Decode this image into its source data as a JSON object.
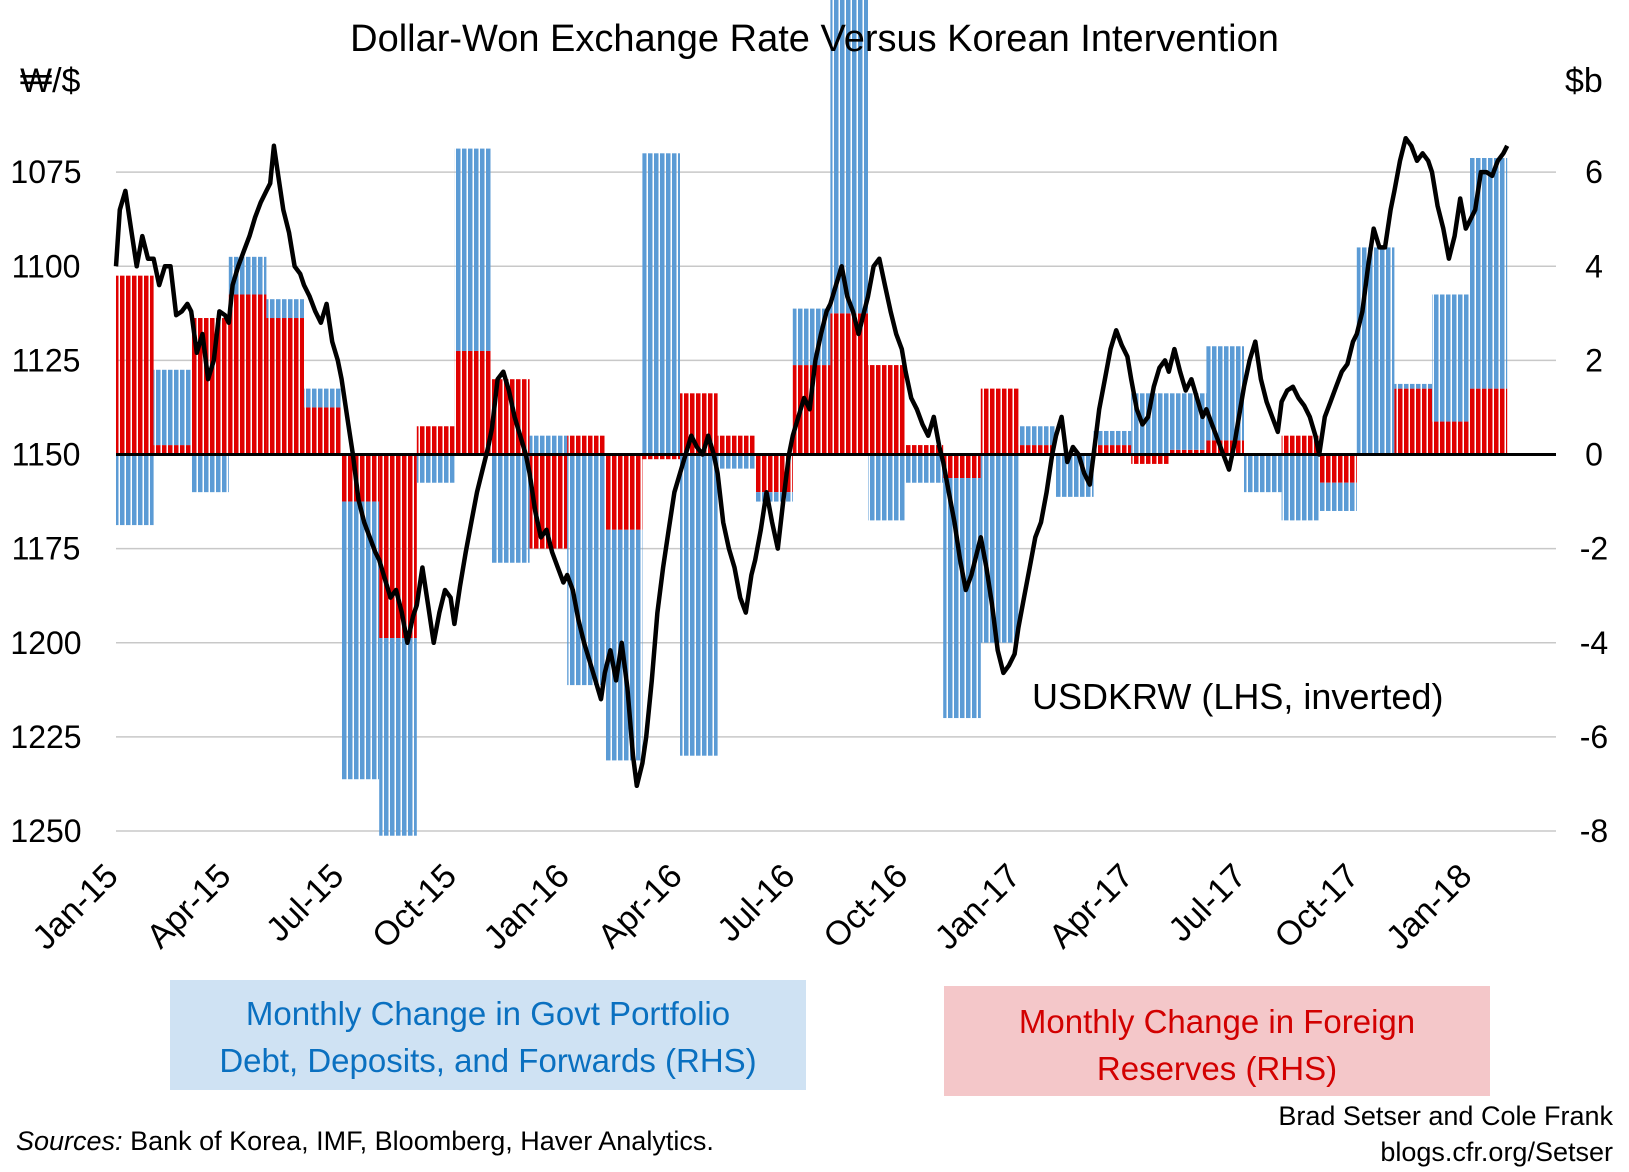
{
  "title": "Dollar-Won Exchange Rate Versus Korean Intervention",
  "left_unit": "₩/$",
  "right_unit": "$b",
  "line_label": "USDKRW (LHS, inverted)",
  "legend": {
    "blue_line1": "Monthly Change in Govt Portfolio",
    "blue_line2": "Debt, Deposits, and Forwards (RHS)",
    "red_line1": "Monthly Change in Foreign",
    "red_line2": "Reserves (RHS)"
  },
  "sources": {
    "label": "Sources:",
    "text": " Bank of Korea, IMF, Bloomberg, Haver Analytics."
  },
  "credit": {
    "line1": "Brad Setser and Cole Frank",
    "line2": "blogs.cfr.org/Setser"
  },
  "colors": {
    "reserves": "#e00000",
    "portfolio": "#5b9bd5",
    "line": "#000000",
    "grid": "#c8c8c8"
  },
  "chart_data": {
    "type": "bar",
    "months": [
      "Jan-15",
      "Feb-15",
      "Mar-15",
      "Apr-15",
      "May-15",
      "Jun-15",
      "Jul-15",
      "Aug-15",
      "Sep-15",
      "Oct-15",
      "Nov-15",
      "Dec-15",
      "Jan-16",
      "Feb-16",
      "Mar-16",
      "Apr-16",
      "May-16",
      "Jun-16",
      "Jul-16",
      "Aug-16",
      "Sep-16",
      "Oct-16",
      "Nov-16",
      "Dec-16",
      "Jan-17",
      "Feb-17",
      "Mar-17",
      "Apr-17",
      "May-17",
      "Jun-17",
      "Jul-17",
      "Aug-17",
      "Sep-17",
      "Oct-17",
      "Nov-17",
      "Dec-17",
      "Jan-18",
      "Feb-18"
    ],
    "x_tick_labels": [
      "Jan-15",
      "Apr-15",
      "Jul-15",
      "Oct-15",
      "Jan-16",
      "Apr-16",
      "Jul-16",
      "Oct-16",
      "Jan-17",
      "Apr-17",
      "Jul-17",
      "Oct-17",
      "Jan-18"
    ],
    "series": [
      {
        "name": "Monthly Change in Foreign Reserves (RHS)",
        "axis": "right",
        "values": [
          3.8,
          0.2,
          2.9,
          3.4,
          2.9,
          1.0,
          -1.0,
          -3.9,
          0.6,
          2.2,
          1.6,
          -2.0,
          0.4,
          -1.6,
          -0.1,
          1.3,
          0.4,
          -0.8,
          1.9,
          3.0,
          1.9,
          0.2,
          -0.5,
          1.4,
          0.2,
          0.0,
          0.2,
          -0.2,
          0.1,
          0.3,
          0.0,
          0.4,
          -0.6,
          0.0,
          1.4,
          0.7,
          1.4,
          0.0
        ]
      },
      {
        "name": "Monthly Change in Govt Portfolio Debt, Deposits, and Forwards (RHS)",
        "axis": "right",
        "values": [
          -1.5,
          1.6,
          -0.8,
          0.8,
          0.4,
          0.4,
          -5.9,
          -4.2,
          -0.6,
          4.3,
          -2.3,
          0.4,
          -4.9,
          -4.9,
          6.4,
          -6.4,
          -0.3,
          -0.2,
          1.2,
          7.9,
          -1.4,
          -0.6,
          -5.1,
          -4.0,
          0.4,
          -0.9,
          0.3,
          1.3,
          1.2,
          2.0,
          -0.8,
          -1.4,
          -0.6,
          4.4,
          0.1,
          2.7,
          4.9,
          0.0
        ]
      },
      {
        "name": "USDKRW (LHS, inverted)",
        "axis": "left",
        "points": [
          [
            0.0,
            1100
          ],
          [
            0.1,
            1085
          ],
          [
            0.25,
            1080
          ],
          [
            0.4,
            1090
          ],
          [
            0.55,
            1100
          ],
          [
            0.7,
            1092
          ],
          [
            0.85,
            1098
          ],
          [
            1.0,
            1098
          ],
          [
            1.15,
            1105
          ],
          [
            1.3,
            1100
          ],
          [
            1.45,
            1100
          ],
          [
            1.6,
            1113
          ],
          [
            1.75,
            1112
          ],
          [
            1.9,
            1110
          ],
          [
            2.0,
            1112
          ],
          [
            2.15,
            1123
          ],
          [
            2.3,
            1118
          ],
          [
            2.45,
            1130
          ],
          [
            2.6,
            1125
          ],
          [
            2.75,
            1112
          ],
          [
            2.9,
            1113
          ],
          [
            3.0,
            1115
          ],
          [
            3.1,
            1105
          ],
          [
            3.25,
            1100
          ],
          [
            3.4,
            1096
          ],
          [
            3.55,
            1092
          ],
          [
            3.7,
            1087
          ],
          [
            3.85,
            1083
          ],
          [
            4.0,
            1080
          ],
          [
            4.1,
            1078
          ],
          [
            4.2,
            1068
          ],
          [
            4.3,
            1075
          ],
          [
            4.45,
            1085
          ],
          [
            4.6,
            1091
          ],
          [
            4.75,
            1100
          ],
          [
            4.9,
            1102
          ],
          [
            5.0,
            1105
          ],
          [
            5.15,
            1108
          ],
          [
            5.3,
            1112
          ],
          [
            5.45,
            1115
          ],
          [
            5.6,
            1110
          ],
          [
            5.75,
            1120
          ],
          [
            5.9,
            1125
          ],
          [
            6.0,
            1130
          ],
          [
            6.15,
            1140
          ],
          [
            6.3,
            1150
          ],
          [
            6.45,
            1162
          ],
          [
            6.6,
            1168
          ],
          [
            6.75,
            1172
          ],
          [
            6.9,
            1176
          ],
          [
            7.0,
            1178
          ],
          [
            7.15,
            1183
          ],
          [
            7.3,
            1188
          ],
          [
            7.45,
            1186
          ],
          [
            7.6,
            1192
          ],
          [
            7.75,
            1200
          ],
          [
            7.9,
            1193
          ],
          [
            8.0,
            1190
          ],
          [
            8.15,
            1180
          ],
          [
            8.3,
            1190
          ],
          [
            8.45,
            1200
          ],
          [
            8.6,
            1192
          ],
          [
            8.75,
            1186
          ],
          [
            8.9,
            1188
          ],
          [
            9.0,
            1195
          ],
          [
            9.15,
            1185
          ],
          [
            9.3,
            1176
          ],
          [
            9.45,
            1168
          ],
          [
            9.6,
            1160
          ],
          [
            9.75,
            1154
          ],
          [
            9.9,
            1148
          ],
          [
            10.0,
            1143
          ],
          [
            10.15,
            1130
          ],
          [
            10.3,
            1128
          ],
          [
            10.45,
            1133
          ],
          [
            10.6,
            1140
          ],
          [
            10.75,
            1145
          ],
          [
            10.9,
            1150
          ],
          [
            11.0,
            1155
          ],
          [
            11.15,
            1165
          ],
          [
            11.3,
            1172
          ],
          [
            11.45,
            1170
          ],
          [
            11.6,
            1176
          ],
          [
            11.75,
            1180
          ],
          [
            11.9,
            1184
          ],
          [
            12.0,
            1182
          ],
          [
            12.15,
            1186
          ],
          [
            12.3,
            1194
          ],
          [
            12.45,
            1200
          ],
          [
            12.6,
            1205
          ],
          [
            12.75,
            1210
          ],
          [
            12.9,
            1215
          ],
          [
            13.0,
            1208
          ],
          [
            13.15,
            1202
          ],
          [
            13.3,
            1210
          ],
          [
            13.45,
            1200
          ],
          [
            13.6,
            1212
          ],
          [
            13.75,
            1230
          ],
          [
            13.85,
            1238
          ],
          [
            14.0,
            1232
          ],
          [
            14.1,
            1225
          ],
          [
            14.25,
            1210
          ],
          [
            14.4,
            1192
          ],
          [
            14.55,
            1180
          ],
          [
            14.7,
            1170
          ],
          [
            14.85,
            1160
          ],
          [
            15.0,
            1155
          ],
          [
            15.15,
            1150
          ],
          [
            15.3,
            1145
          ],
          [
            15.45,
            1148
          ],
          [
            15.6,
            1150
          ],
          [
            15.75,
            1145
          ],
          [
            15.9,
            1150
          ],
          [
            16.0,
            1155
          ],
          [
            16.15,
            1168
          ],
          [
            16.3,
            1175
          ],
          [
            16.45,
            1180
          ],
          [
            16.6,
            1188
          ],
          [
            16.75,
            1192
          ],
          [
            16.9,
            1182
          ],
          [
            17.0,
            1178
          ],
          [
            17.15,
            1170
          ],
          [
            17.3,
            1160
          ],
          [
            17.45,
            1168
          ],
          [
            17.6,
            1175
          ],
          [
            17.75,
            1162
          ],
          [
            17.9,
            1150
          ],
          [
            18.0,
            1145
          ],
          [
            18.15,
            1140
          ],
          [
            18.3,
            1135
          ],
          [
            18.45,
            1138
          ],
          [
            18.6,
            1125
          ],
          [
            18.75,
            1118
          ],
          [
            18.9,
            1112
          ],
          [
            19.0,
            1110
          ],
          [
            19.15,
            1105
          ],
          [
            19.3,
            1100
          ],
          [
            19.45,
            1108
          ],
          [
            19.6,
            1112
          ],
          [
            19.75,
            1118
          ],
          [
            19.9,
            1112
          ],
          [
            20.0,
            1108
          ],
          [
            20.15,
            1100
          ],
          [
            20.3,
            1098
          ],
          [
            20.45,
            1105
          ],
          [
            20.6,
            1112
          ],
          [
            20.75,
            1118
          ],
          [
            20.9,
            1122
          ],
          [
            21.0,
            1128
          ],
          [
            21.15,
            1135
          ],
          [
            21.3,
            1138
          ],
          [
            21.45,
            1142
          ],
          [
            21.6,
            1145
          ],
          [
            21.75,
            1140
          ],
          [
            21.9,
            1148
          ],
          [
            22.0,
            1152
          ],
          [
            22.15,
            1160
          ],
          [
            22.3,
            1168
          ],
          [
            22.45,
            1178
          ],
          [
            22.6,
            1186
          ],
          [
            22.75,
            1182
          ],
          [
            22.9,
            1176
          ],
          [
            23.0,
            1172
          ],
          [
            23.15,
            1180
          ],
          [
            23.3,
            1190
          ],
          [
            23.45,
            1202
          ],
          [
            23.6,
            1208
          ],
          [
            23.75,
            1206
          ],
          [
            23.9,
            1203
          ],
          [
            24.0,
            1196
          ],
          [
            24.15,
            1188
          ],
          [
            24.3,
            1180
          ],
          [
            24.45,
            1172
          ],
          [
            24.6,
            1168
          ],
          [
            24.75,
            1160
          ],
          [
            24.9,
            1150
          ],
          [
            25.0,
            1145
          ],
          [
            25.15,
            1140
          ],
          [
            25.3,
            1152
          ],
          [
            25.45,
            1148
          ],
          [
            25.6,
            1150
          ],
          [
            25.75,
            1155
          ],
          [
            25.9,
            1158
          ],
          [
            26.0,
            1150
          ],
          [
            26.15,
            1138
          ],
          [
            26.3,
            1130
          ],
          [
            26.45,
            1122
          ],
          [
            26.6,
            1117
          ],
          [
            26.75,
            1121
          ],
          [
            26.9,
            1124
          ],
          [
            27.0,
            1130
          ],
          [
            27.15,
            1138
          ],
          [
            27.3,
            1142
          ],
          [
            27.45,
            1140
          ],
          [
            27.6,
            1132
          ],
          [
            27.75,
            1127
          ],
          [
            27.9,
            1125
          ],
          [
            28.0,
            1128
          ],
          [
            28.15,
            1122
          ],
          [
            28.3,
            1128
          ],
          [
            28.45,
            1133
          ],
          [
            28.6,
            1130
          ],
          [
            28.75,
            1135
          ],
          [
            28.9,
            1140
          ],
          [
            29.0,
            1138
          ],
          [
            29.15,
            1142
          ],
          [
            29.3,
            1146
          ],
          [
            29.45,
            1150
          ],
          [
            29.6,
            1154
          ],
          [
            29.75,
            1147
          ],
          [
            29.9,
            1138
          ],
          [
            30.0,
            1132
          ],
          [
            30.15,
            1125
          ],
          [
            30.3,
            1120
          ],
          [
            30.45,
            1130
          ],
          [
            30.6,
            1136
          ],
          [
            30.75,
            1140
          ],
          [
            30.9,
            1144
          ],
          [
            31.0,
            1136
          ],
          [
            31.15,
            1133
          ],
          [
            31.3,
            1132
          ],
          [
            31.45,
            1135
          ],
          [
            31.6,
            1137
          ],
          [
            31.75,
            1140
          ],
          [
            31.9,
            1145
          ],
          [
            32.0,
            1150
          ],
          [
            32.15,
            1140
          ],
          [
            32.3,
            1136
          ],
          [
            32.45,
            1132
          ],
          [
            32.6,
            1128
          ],
          [
            32.75,
            1126
          ],
          [
            32.9,
            1120
          ],
          [
            33.0,
            1118
          ],
          [
            33.15,
            1112
          ],
          [
            33.3,
            1100
          ],
          [
            33.45,
            1090
          ],
          [
            33.6,
            1095
          ],
          [
            33.75,
            1095
          ],
          [
            33.9,
            1085
          ],
          [
            34.0,
            1080
          ],
          [
            34.15,
            1072
          ],
          [
            34.3,
            1066
          ],
          [
            34.45,
            1068
          ],
          [
            34.6,
            1072
          ],
          [
            34.75,
            1070
          ],
          [
            34.9,
            1072
          ],
          [
            35.0,
            1075
          ],
          [
            35.15,
            1084
          ],
          [
            35.3,
            1090
          ],
          [
            35.45,
            1098
          ],
          [
            35.6,
            1092
          ],
          [
            35.75,
            1082
          ],
          [
            35.9,
            1090
          ],
          [
            36.0,
            1088
          ],
          [
            36.15,
            1085
          ],
          [
            36.3,
            1075
          ],
          [
            36.45,
            1075
          ],
          [
            36.6,
            1076
          ],
          [
            36.75,
            1072
          ],
          [
            36.9,
            1070
          ],
          [
            37.0,
            1068
          ]
        ]
      }
    ],
    "left_axis": {
      "label": "₩/$",
      "min": 1050,
      "max": 1250,
      "inverted": true,
      "ticks": [
        1075,
        1100,
        1125,
        1150,
        1175,
        1200,
        1225,
        1250
      ]
    },
    "right_axis": {
      "label": "$b",
      "min": -8,
      "max": 8,
      "ticks": [
        6,
        4,
        2,
        0,
        -2,
        -4,
        -6,
        -8
      ]
    },
    "grid": true,
    "legend_position": "bottom"
  }
}
